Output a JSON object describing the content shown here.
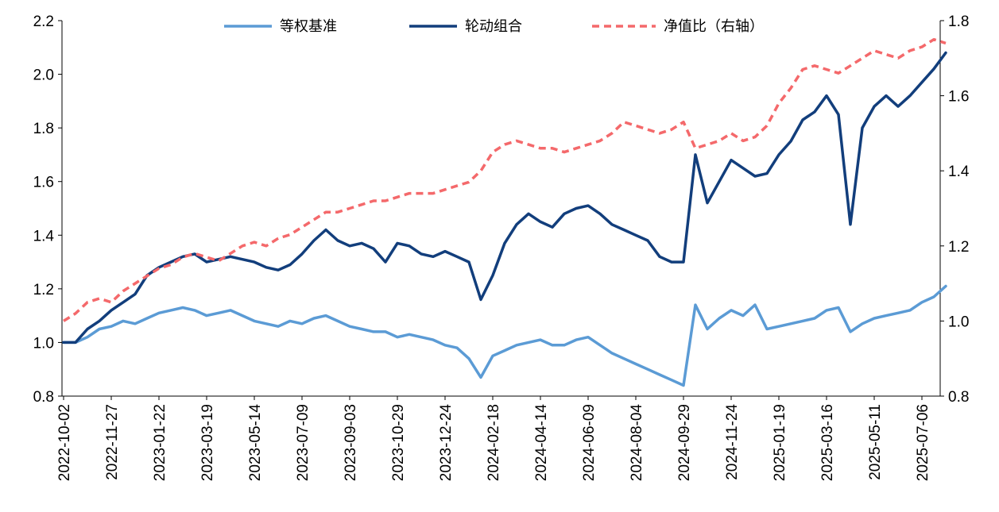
{
  "chart_data": {
    "type": "line",
    "title": "",
    "xlabel": "",
    "ylabel": "",
    "y2label": "",
    "ylim": [
      0.8,
      2.2
    ],
    "y2lim": [
      0.8,
      1.8
    ],
    "yticks": [
      "0.8",
      "1.0",
      "1.2",
      "1.4",
      "1.6",
      "1.8",
      "2.0",
      "2.2"
    ],
    "y2ticks": [
      "0.8",
      "1.0",
      "1.2",
      "1.4",
      "1.6",
      "1.8"
    ],
    "x_tick_labels": [
      "2022-10-02",
      "2022-11-27",
      "2023-01-22",
      "2023-03-19",
      "2023-05-14",
      "2023-07-09",
      "2023-09-03",
      "2023-10-29",
      "2023-12-24",
      "2024-02-18",
      "2024-04-14",
      "2024-06-09",
      "2024-08-04",
      "2024-09-29",
      "2024-11-24",
      "2025-01-19",
      "2025-03-16",
      "2025-05-11",
      "2025-07-06"
    ],
    "legend_position": "top",
    "grid": false,
    "series": [
      {
        "name": "等权基准",
        "axis": "left",
        "color": "#5b9bd5",
        "style": "solid",
        "x": [
          "2022-10-02",
          "2022-10-16",
          "2022-10-30",
          "2022-11-13",
          "2022-11-27",
          "2022-12-11",
          "2022-12-25",
          "2023-01-08",
          "2023-01-22",
          "2023-02-05",
          "2023-02-19",
          "2023-03-05",
          "2023-03-19",
          "2023-04-02",
          "2023-04-16",
          "2023-04-30",
          "2023-05-14",
          "2023-05-28",
          "2023-06-11",
          "2023-06-25",
          "2023-07-09",
          "2023-07-23",
          "2023-08-06",
          "2023-08-20",
          "2023-09-03",
          "2023-09-17",
          "2023-10-01",
          "2023-10-15",
          "2023-10-29",
          "2023-11-12",
          "2023-11-26",
          "2023-12-10",
          "2023-12-24",
          "2024-01-07",
          "2024-01-21",
          "2024-02-04",
          "2024-02-18",
          "2024-03-03",
          "2024-03-17",
          "2024-03-31",
          "2024-04-14",
          "2024-04-28",
          "2024-05-12",
          "2024-05-26",
          "2024-06-09",
          "2024-06-23",
          "2024-07-07",
          "2024-07-21",
          "2024-08-04",
          "2024-08-18",
          "2024-09-01",
          "2024-09-15",
          "2024-09-29",
          "2024-10-13",
          "2024-10-27",
          "2024-11-10",
          "2024-11-24",
          "2024-12-08",
          "2024-12-22",
          "2025-01-05",
          "2025-01-19",
          "2025-02-02",
          "2025-02-16",
          "2025-03-02",
          "2025-03-16",
          "2025-03-30",
          "2025-04-13",
          "2025-04-27",
          "2025-05-11",
          "2025-05-25",
          "2025-06-08",
          "2025-06-22",
          "2025-07-06",
          "2025-07-20",
          "2025-08-03"
        ],
        "values": [
          1.0,
          1.0,
          1.02,
          1.05,
          1.06,
          1.08,
          1.07,
          1.09,
          1.11,
          1.12,
          1.13,
          1.12,
          1.1,
          1.11,
          1.12,
          1.1,
          1.08,
          1.07,
          1.06,
          1.08,
          1.07,
          1.09,
          1.1,
          1.08,
          1.06,
          1.05,
          1.04,
          1.04,
          1.02,
          1.03,
          1.02,
          1.01,
          0.99,
          0.98,
          0.94,
          0.87,
          0.95,
          0.97,
          0.99,
          1.0,
          1.01,
          0.99,
          0.99,
          1.01,
          1.02,
          0.99,
          0.96,
          0.94,
          0.92,
          0.9,
          0.88,
          0.86,
          0.84,
          1.14,
          1.05,
          1.09,
          1.12,
          1.1,
          1.14,
          1.05,
          1.06,
          1.07,
          1.08,
          1.09,
          1.12,
          1.13,
          1.04,
          1.07,
          1.09,
          1.1,
          1.11,
          1.12,
          1.15,
          1.17,
          1.21
        ]
      },
      {
        "name": "轮动组合",
        "axis": "left",
        "color": "#123e7c",
        "style": "solid",
        "x": [
          "2022-10-02",
          "2022-10-16",
          "2022-10-30",
          "2022-11-13",
          "2022-11-27",
          "2022-12-11",
          "2022-12-25",
          "2023-01-08",
          "2023-01-22",
          "2023-02-05",
          "2023-02-19",
          "2023-03-05",
          "2023-03-19",
          "2023-04-02",
          "2023-04-16",
          "2023-04-30",
          "2023-05-14",
          "2023-05-28",
          "2023-06-11",
          "2023-06-25",
          "2023-07-09",
          "2023-07-23",
          "2023-08-06",
          "2023-08-20",
          "2023-09-03",
          "2023-09-17",
          "2023-10-01",
          "2023-10-15",
          "2023-10-29",
          "2023-11-12",
          "2023-11-26",
          "2023-12-10",
          "2023-12-24",
          "2024-01-07",
          "2024-01-21",
          "2024-02-04",
          "2024-02-18",
          "2024-03-03",
          "2024-03-17",
          "2024-03-31",
          "2024-04-14",
          "2024-04-28",
          "2024-05-12",
          "2024-05-26",
          "2024-06-09",
          "2024-06-23",
          "2024-07-07",
          "2024-07-21",
          "2024-08-04",
          "2024-08-18",
          "2024-09-01",
          "2024-09-15",
          "2024-09-29",
          "2024-10-13",
          "2024-10-27",
          "2024-11-10",
          "2024-11-24",
          "2024-12-08",
          "2024-12-22",
          "2025-01-05",
          "2025-01-19",
          "2025-02-02",
          "2025-02-16",
          "2025-03-02",
          "2025-03-16",
          "2025-03-30",
          "2025-04-13",
          "2025-04-27",
          "2025-05-11",
          "2025-05-25",
          "2025-06-08",
          "2025-06-22",
          "2025-07-06",
          "2025-07-20",
          "2025-08-03"
        ],
        "values": [
          1.0,
          1.0,
          1.05,
          1.08,
          1.12,
          1.15,
          1.18,
          1.25,
          1.28,
          1.3,
          1.32,
          1.33,
          1.3,
          1.31,
          1.32,
          1.31,
          1.3,
          1.28,
          1.27,
          1.29,
          1.33,
          1.38,
          1.42,
          1.38,
          1.36,
          1.37,
          1.35,
          1.3,
          1.37,
          1.36,
          1.33,
          1.32,
          1.34,
          1.32,
          1.3,
          1.16,
          1.25,
          1.37,
          1.44,
          1.48,
          1.45,
          1.43,
          1.48,
          1.5,
          1.51,
          1.48,
          1.44,
          1.42,
          1.4,
          1.38,
          1.32,
          1.3,
          1.3,
          1.7,
          1.52,
          1.6,
          1.68,
          1.65,
          1.62,
          1.63,
          1.7,
          1.75,
          1.83,
          1.86,
          1.92,
          1.85,
          1.44,
          1.8,
          1.88,
          1.92,
          1.88,
          1.92,
          1.97,
          2.02,
          2.08
        ]
      },
      {
        "name": "净值比（右轴）",
        "axis": "right",
        "color": "#f4696b",
        "style": "dashed",
        "x": [
          "2022-10-02",
          "2022-10-16",
          "2022-10-30",
          "2022-11-13",
          "2022-11-27",
          "2022-12-11",
          "2022-12-25",
          "2023-01-08",
          "2023-01-22",
          "2023-02-05",
          "2023-02-19",
          "2023-03-05",
          "2023-03-19",
          "2023-04-02",
          "2023-04-16",
          "2023-04-30",
          "2023-05-14",
          "2023-05-28",
          "2023-06-11",
          "2023-06-25",
          "2023-07-09",
          "2023-07-23",
          "2023-08-06",
          "2023-08-20",
          "2023-09-03",
          "2023-09-17",
          "2023-10-01",
          "2023-10-15",
          "2023-10-29",
          "2023-11-12",
          "2023-11-26",
          "2023-12-10",
          "2023-12-24",
          "2024-01-07",
          "2024-01-21",
          "2024-02-04",
          "2024-02-18",
          "2024-03-03",
          "2024-03-17",
          "2024-03-31",
          "2024-04-14",
          "2024-04-28",
          "2024-05-12",
          "2024-05-26",
          "2024-06-09",
          "2024-06-23",
          "2024-07-07",
          "2024-07-21",
          "2024-08-04",
          "2024-08-18",
          "2024-09-01",
          "2024-09-15",
          "2024-09-29",
          "2024-10-13",
          "2024-10-27",
          "2024-11-10",
          "2024-11-24",
          "2024-12-08",
          "2024-12-22",
          "2025-01-05",
          "2025-01-19",
          "2025-02-02",
          "2025-02-16",
          "2025-03-02",
          "2025-03-16",
          "2025-03-30",
          "2025-04-13",
          "2025-04-27",
          "2025-05-11",
          "2025-05-25",
          "2025-06-08",
          "2025-06-22",
          "2025-07-06",
          "2025-07-20",
          "2025-08-03"
        ],
        "values": [
          1.0,
          1.02,
          1.05,
          1.06,
          1.05,
          1.08,
          1.1,
          1.12,
          1.14,
          1.15,
          1.17,
          1.18,
          1.17,
          1.16,
          1.18,
          1.2,
          1.21,
          1.2,
          1.22,
          1.23,
          1.25,
          1.27,
          1.29,
          1.29,
          1.3,
          1.31,
          1.32,
          1.32,
          1.33,
          1.34,
          1.34,
          1.34,
          1.35,
          1.36,
          1.37,
          1.4,
          1.45,
          1.47,
          1.48,
          1.47,
          1.46,
          1.46,
          1.45,
          1.46,
          1.47,
          1.48,
          1.5,
          1.53,
          1.52,
          1.51,
          1.5,
          1.51,
          1.53,
          1.46,
          1.47,
          1.48,
          1.5,
          1.48,
          1.49,
          1.52,
          1.58,
          1.62,
          1.67,
          1.68,
          1.67,
          1.66,
          1.68,
          1.7,
          1.72,
          1.71,
          1.7,
          1.72,
          1.73,
          1.75,
          1.74
        ]
      }
    ]
  }
}
